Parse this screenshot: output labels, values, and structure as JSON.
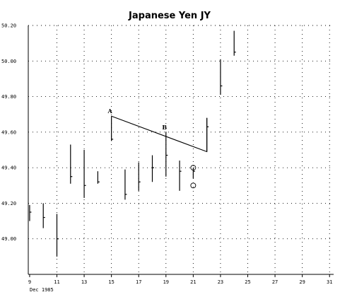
{
  "chart_data": {
    "type": "ohlc",
    "title": "Japanese Yen JY",
    "x_sublabel": "Dec 1985",
    "ylim": [
      48.8,
      50.2
    ],
    "yticks": [
      49.0,
      49.2,
      49.4,
      49.6,
      49.8,
      50.0,
      50.2
    ],
    "ytick_labels": [
      "49.00",
      "49.20",
      "49.40",
      "49.60",
      "49.80",
      "50.00",
      "50.20"
    ],
    "xlim": [
      8.9,
      31.3
    ],
    "xticks": [
      9,
      11,
      13,
      15,
      17,
      19,
      21,
      23,
      25,
      27,
      29,
      31
    ],
    "xtick_labels": [
      "9",
      "11",
      "13",
      "15",
      "17",
      "19",
      "21",
      "23",
      "25",
      "27",
      "29",
      "31"
    ],
    "grid": true,
    "bars": [
      {
        "x": 9,
        "high": 49.19,
        "low": 49.1,
        "close": 49.15
      },
      {
        "x": 10,
        "high": 49.2,
        "low": 49.06,
        "close": 49.12
      },
      {
        "x": 11,
        "high": 49.14,
        "low": 48.9,
        "close": 49.0
      },
      {
        "x": 12,
        "high": 49.53,
        "low": 49.31,
        "close": 49.35
      },
      {
        "x": 13,
        "high": 49.5,
        "low": 49.23,
        "close": 49.3
      },
      {
        "x": 14,
        "high": 49.38,
        "low": 49.31,
        "close": 49.32
      },
      {
        "x": 15,
        "high": 49.69,
        "low": 49.55,
        "close": 49.56
      },
      {
        "x": 16,
        "high": 49.39,
        "low": 49.22,
        "close": 49.25
      },
      {
        "x": 17,
        "high": 49.43,
        "low": 49.27,
        "close": 49.32
      },
      {
        "x": 18,
        "high": 49.47,
        "low": 49.32,
        "close": 49.4
      },
      {
        "x": 19,
        "high": 49.6,
        "low": 49.35,
        "close": 49.47
      },
      {
        "x": 20,
        "high": 49.44,
        "low": 49.27,
        "close": 49.38
      },
      {
        "x": 21,
        "high": 49.4,
        "low": 49.34,
        "close": 49.38
      },
      {
        "x": 22,
        "high": 49.68,
        "low": 49.49,
        "close": 49.63
      },
      {
        "x": 23,
        "high": 50.01,
        "low": 49.81,
        "close": 49.86
      },
      {
        "x": 24,
        "high": 50.17,
        "low": 50.03,
        "close": 50.05
      }
    ],
    "trendline": [
      {
        "x": 15,
        "y": 49.69
      },
      {
        "x": 22,
        "y": 49.49
      },
      {
        "x": 22,
        "y": 49.68
      }
    ],
    "annotations": [
      {
        "text": "A",
        "x": 15,
        "y": 49.69
      },
      {
        "text": "B",
        "x": 19,
        "y": 49.6
      }
    ],
    "circles": [
      {
        "x": 21,
        "y": 49.4
      },
      {
        "x": 21,
        "y": 49.3
      }
    ]
  }
}
